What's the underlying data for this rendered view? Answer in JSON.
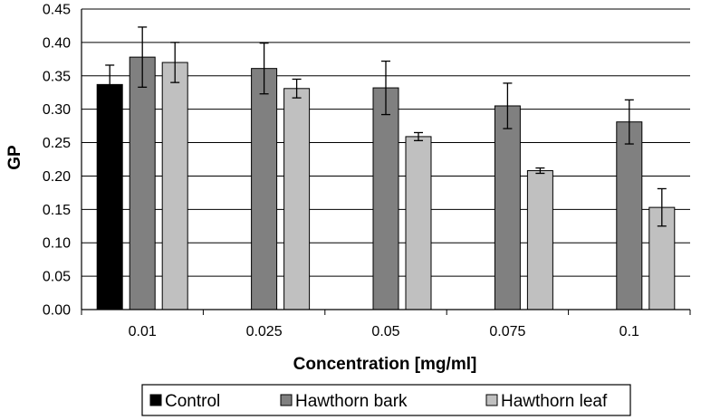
{
  "chart_data": {
    "type": "bar",
    "title": "",
    "xlabel": "Concentration [mg/ml]",
    "ylabel": "GP",
    "ylim": [
      0,
      0.45
    ],
    "yticks": [
      "0.00",
      "0.05",
      "0.10",
      "0.15",
      "0.20",
      "0.25",
      "0.30",
      "0.35",
      "0.40",
      "0.45"
    ],
    "grid": true,
    "legend": "bottom",
    "categories": [
      "0.01",
      "0.025",
      "0.05",
      "0.075",
      "0.1"
    ],
    "series": [
      {
        "name": "Control",
        "color": "#000000",
        "values": [
          0.337,
          null,
          null,
          null,
          null
        ],
        "errors": [
          0.029,
          null,
          null,
          null,
          null
        ]
      },
      {
        "name": "Hawthorn bark",
        "color": "#808080",
        "values": [
          0.378,
          0.361,
          0.332,
          0.305,
          0.281
        ],
        "errors": [
          0.045,
          0.038,
          0.04,
          0.034,
          0.033
        ]
      },
      {
        "name": "Hawthorn leaf",
        "color": "#c0c0c0",
        "values": [
          0.37,
          0.331,
          0.259,
          0.208,
          0.153
        ],
        "errors": [
          0.03,
          0.014,
          0.006,
          0.004,
          0.028
        ]
      }
    ]
  }
}
